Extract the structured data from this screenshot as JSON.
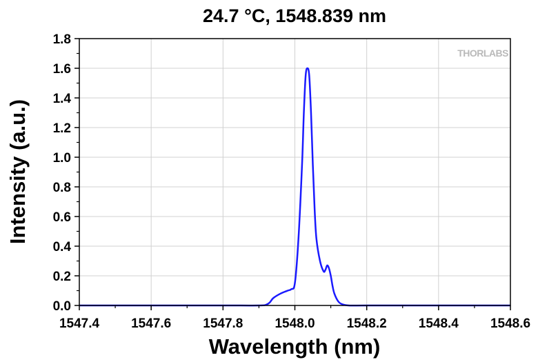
{
  "chart_data": {
    "type": "line",
    "title": "24.7 °C, 1548.839 nm",
    "xlabel": "Wavelength (nm)",
    "ylabel": "Intensity (a.u.)",
    "xlim": [
      1547.4,
      1548.6
    ],
    "ylim": [
      0.0,
      1.8
    ],
    "x_ticks": [
      "1547.4",
      "1547.6",
      "1547.8",
      "1548.0",
      "1548.2",
      "1548.4",
      "1548.6"
    ],
    "y_ticks": [
      "0.0",
      "0.2",
      "0.4",
      "0.6",
      "0.8",
      "1.0",
      "1.2",
      "1.4",
      "1.6",
      "1.8"
    ],
    "grid": true,
    "series_color": "#1a1aff",
    "watermark": "THORLABS",
    "series": [
      {
        "x": [
          1547.4,
          1547.6,
          1547.8,
          1547.9,
          1547.92,
          1547.93,
          1547.94,
          1547.96,
          1547.98,
          1547.99,
          1548.0,
          1548.01,
          1548.02,
          1548.025,
          1548.03,
          1548.035,
          1548.04,
          1548.045,
          1548.05,
          1548.055,
          1548.06,
          1548.07,
          1548.08,
          1548.085,
          1548.09,
          1548.095,
          1548.1,
          1548.105,
          1548.11,
          1548.12,
          1548.13,
          1548.15,
          1548.2,
          1548.4,
          1548.6
        ],
        "y": [
          0.0,
          0.0,
          0.0,
          0.0,
          0.005,
          0.02,
          0.05,
          0.08,
          0.1,
          0.11,
          0.15,
          0.45,
          0.95,
          1.3,
          1.55,
          1.6,
          1.55,
          1.3,
          0.95,
          0.65,
          0.45,
          0.3,
          0.23,
          0.24,
          0.27,
          0.25,
          0.2,
          0.13,
          0.08,
          0.03,
          0.01,
          0.0,
          0.0,
          0.0,
          0.0
        ]
      }
    ]
  }
}
